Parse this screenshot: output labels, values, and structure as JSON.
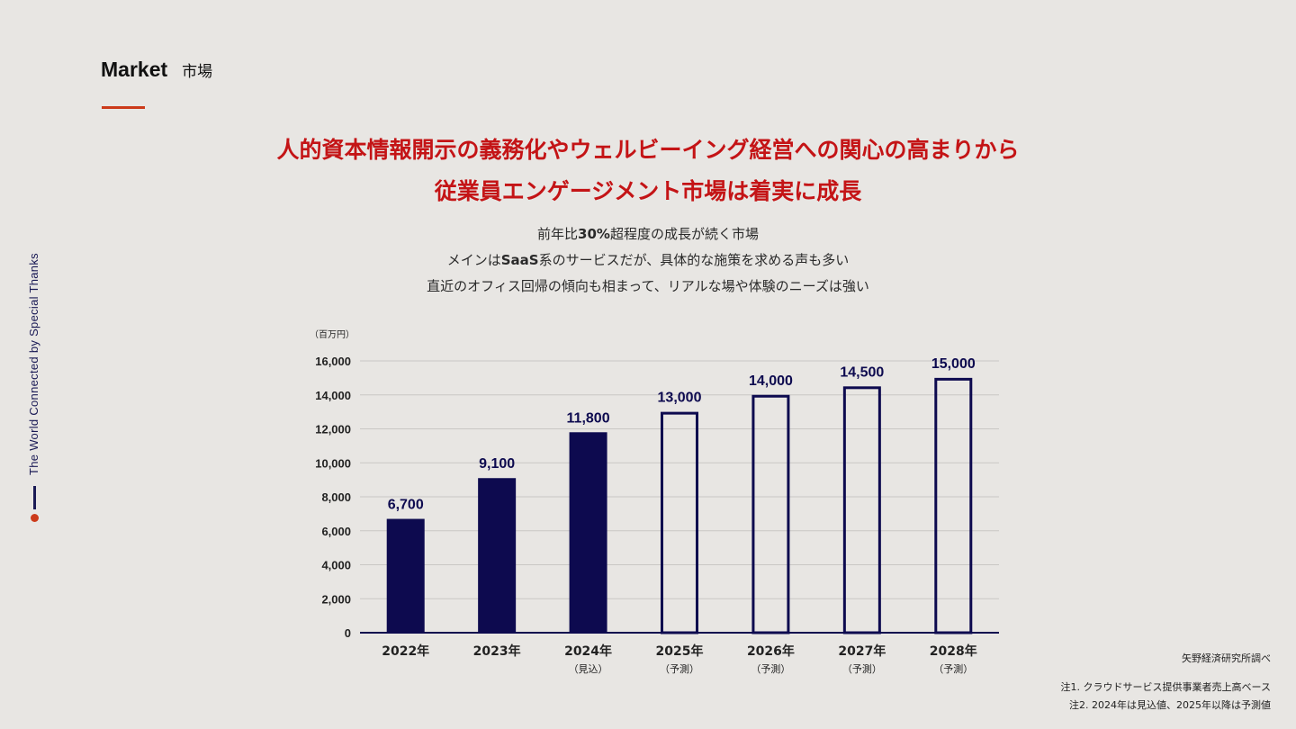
{
  "section": {
    "en": "Market",
    "jp": "市場"
  },
  "side_tag": "The World Connected  by Special Thanks",
  "headline": {
    "line1": "人的資本情報開示の義務化やウェルビーイング経営への関心の高まりから",
    "line2": "従業員エンゲージメント市場は着実に成長"
  },
  "subtexts": [
    {
      "pre": "前年比",
      "bold": "30%",
      "post": "超程度の成長が続く市場"
    },
    {
      "pre": "メインは",
      "bold": "SaaS",
      "post": "系のサービスだが、具体的な施策を求める声も多い"
    },
    {
      "pre": "直近のオフィス回帰の傾向も相まって、リアルな場や体験のニーズは強い",
      "bold": "",
      "post": ""
    }
  ],
  "chart_data": {
    "type": "bar",
    "unit_label": "（百万円）",
    "categories": [
      "2022年",
      "2023年",
      "2024年",
      "2025年",
      "2026年",
      "2027年",
      "2028年"
    ],
    "category_notes": [
      "",
      "",
      "（見込）",
      "（予測）",
      "（予測）",
      "（予測）",
      "（予測）"
    ],
    "values": [
      6700,
      9100,
      11800,
      13000,
      14000,
      14500,
      15000
    ],
    "value_labels": [
      "6,700",
      "9,100",
      "11,800",
      "13,000",
      "14,000",
      "14,500",
      "15,000"
    ],
    "bar_style": [
      "filled",
      "filled",
      "filled",
      "outline",
      "outline",
      "outline",
      "outline"
    ],
    "ylim": [
      0,
      16000
    ],
    "yticks": [
      0,
      2000,
      4000,
      6000,
      8000,
      10000,
      12000,
      14000,
      16000
    ],
    "ytick_labels": [
      "0",
      "2,000",
      "4,000",
      "6,000",
      "8,000",
      "10,000",
      "12,000",
      "14,000",
      "16,000"
    ],
    "grid": true,
    "colors": {
      "bar": "#0d0a4f",
      "grid": "#c9c7c4",
      "axis": "#0d0a4f"
    }
  },
  "sources": {
    "source": "矢野経済研究所調べ",
    "note1": "注1. クラウドサービス提供事業者売上高ベース",
    "note2": "注2. 2024年は見込値、2025年以降は予測値"
  }
}
